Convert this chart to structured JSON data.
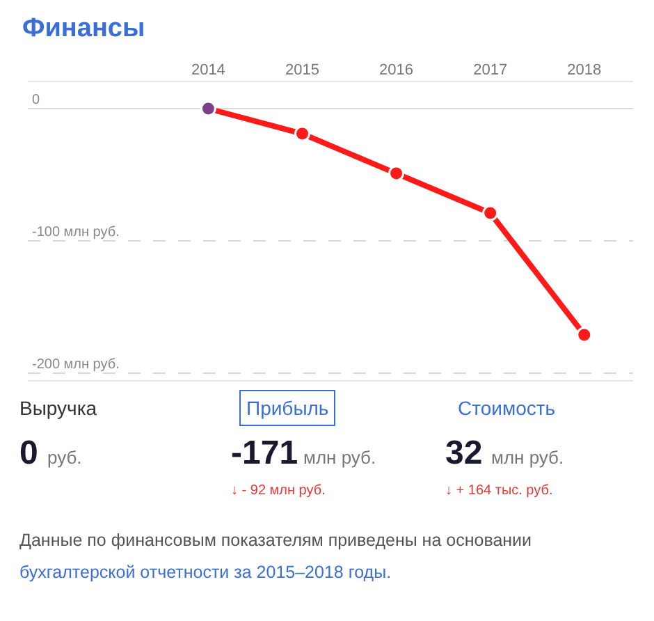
{
  "chart_data": {
    "type": "line",
    "title": "Финансы",
    "categories": [
      "2014",
      "2015",
      "2016",
      "2017",
      "2018"
    ],
    "series": [
      {
        "color": "#ff1a1a",
        "colors": [
          "#7b3f8c",
          "#ff1a1a",
          "#ff1a1a",
          "#ff1a1a",
          "#ff1a1a"
        ],
        "values": [
          0,
          -19,
          -49,
          -79,
          -171
        ]
      }
    ],
    "ylim": [
      -205,
      20
    ],
    "yticks": [
      0,
      {
        "value": -100,
        "label": "-100 млн руб."
      },
      {
        "value": -200,
        "label": "-200 млн руб."
      }
    ],
    "grid": "y",
    "legend": false,
    "marker": "circle",
    "line_style": "solid",
    "annotations": [
      "Выручка",
      "0",
      "руб.",
      "Прибыль",
      "-171",
      "млн руб.",
      "↓ - 92 млн руб.",
      "Стоимость",
      "32",
      "млн руб.",
      "↓ + 164 тыс. руб.",
      "Данные по финансовым показателям приведены на основании",
      "бухгалтерской отчетности за 2015–2018 годы."
    ]
  }
}
